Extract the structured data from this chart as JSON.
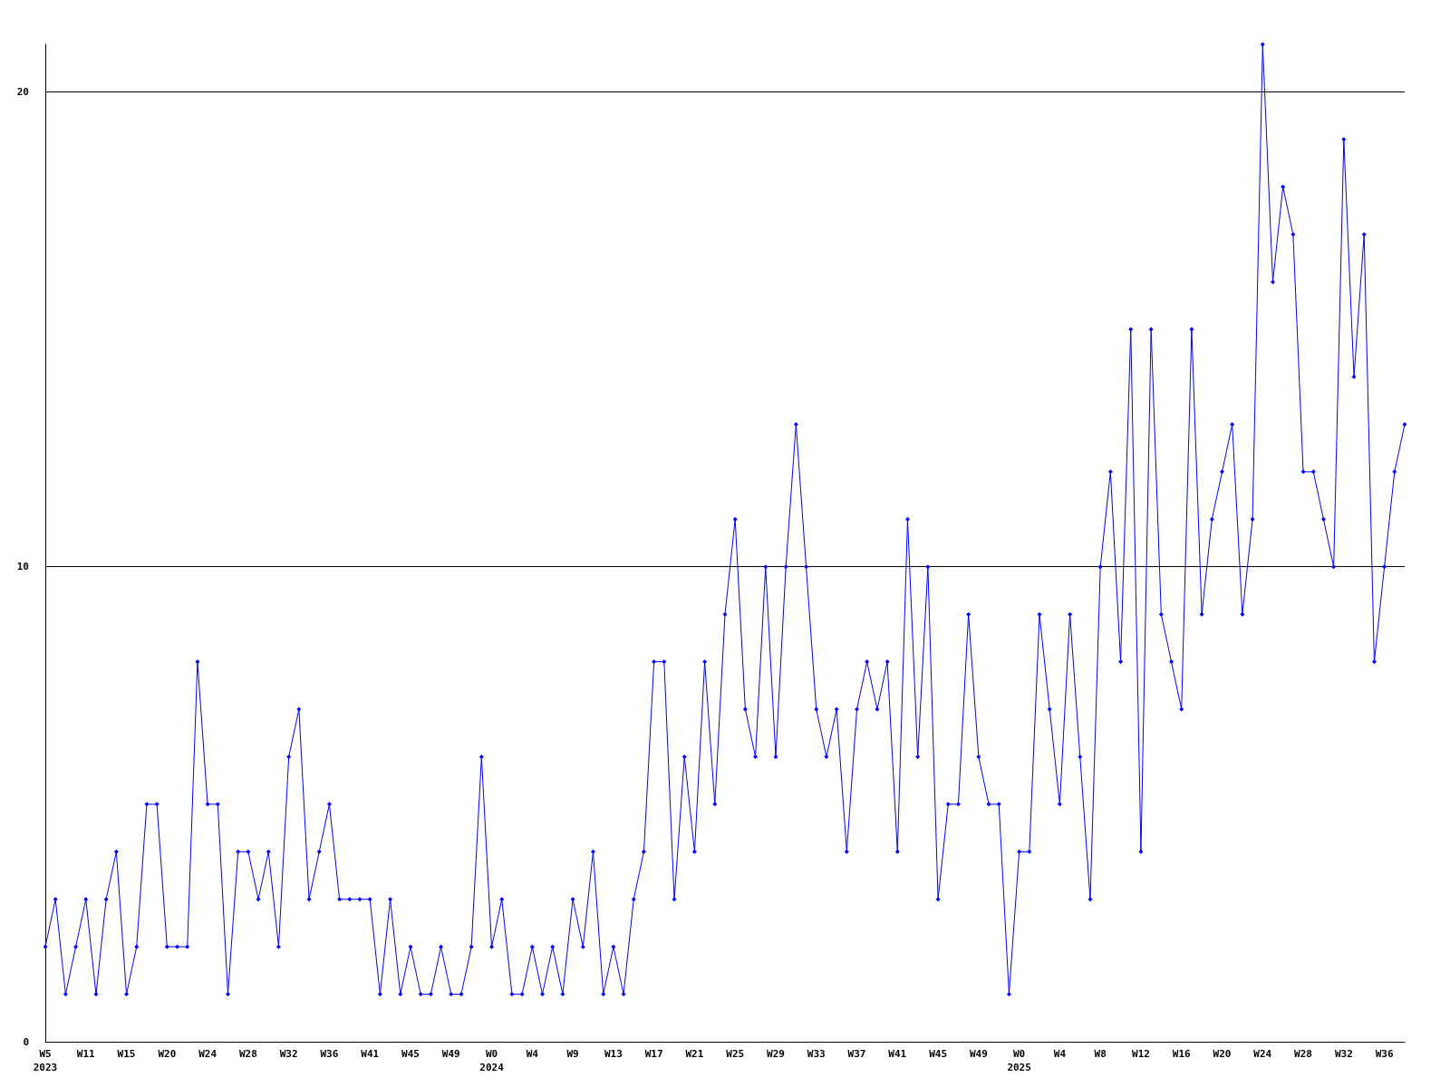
{
  "chart_data": {
    "type": "line",
    "categories": [
      "W5\n2023",
      null,
      null,
      null,
      "W11",
      null,
      null,
      null,
      "W15",
      null,
      null,
      null,
      "W20",
      null,
      null,
      null,
      "W24",
      null,
      null,
      null,
      "W28",
      null,
      null,
      null,
      "W32",
      null,
      null,
      null,
      "W36",
      null,
      null,
      null,
      "W41",
      null,
      null,
      null,
      "W45",
      null,
      null,
      null,
      "W49",
      null,
      null,
      null,
      "W0\n2024",
      null,
      null,
      null,
      "W4",
      null,
      null,
      null,
      "W9",
      null,
      null,
      null,
      "W13",
      null,
      null,
      null,
      "W17",
      null,
      null,
      null,
      "W21",
      null,
      null,
      null,
      "W25",
      null,
      null,
      null,
      "W29",
      null,
      null,
      null,
      "W33",
      null,
      null,
      null,
      "W37",
      null,
      null,
      null,
      "W41",
      null,
      null,
      null,
      "W45",
      null,
      null,
      null,
      "W49",
      null,
      null,
      null,
      "W0\n2025",
      null,
      null,
      null,
      "W4",
      null,
      null,
      null,
      "W8",
      null,
      null,
      null,
      "W12",
      null,
      null,
      null,
      "W16",
      null,
      null,
      null,
      "W20",
      null,
      null,
      null,
      "W24",
      null,
      null,
      null,
      "W28",
      null,
      null,
      null,
      "W32",
      null,
      null,
      null,
      "W36",
      null,
      null
    ],
    "series": [
      {
        "color": "#0000ff",
        "values": [
          2,
          3,
          1,
          2,
          3,
          1,
          3,
          4,
          1,
          2,
          5,
          5,
          2,
          2,
          2,
          8,
          5,
          5,
          1,
          4,
          4,
          3,
          4,
          2,
          6,
          7,
          3,
          4,
          5,
          3,
          3,
          3,
          3,
          1,
          3,
          1,
          2,
          1,
          1,
          2,
          1,
          1,
          2,
          6,
          2,
          3,
          1,
          1,
          2,
          1,
          2,
          1,
          3,
          2,
          4,
          1,
          2,
          1,
          3,
          4,
          8,
          8,
          3,
          6,
          4,
          8,
          5,
          9,
          11,
          7,
          6,
          10,
          6,
          10,
          13,
          10,
          7,
          6,
          7,
          4,
          7,
          8,
          7,
          8,
          4,
          11,
          6,
          10,
          3,
          5,
          5,
          9,
          6,
          5,
          5,
          1,
          4,
          4,
          9,
          7,
          5,
          9,
          6,
          3,
          10,
          12,
          8,
          15,
          4,
          15,
          9,
          8,
          7,
          15,
          9,
          11,
          12,
          13,
          9,
          11,
          21,
          16,
          18,
          17,
          12,
          12,
          11,
          10,
          19,
          14,
          17,
          8,
          10,
          12,
          13
        ]
      }
    ],
    "ylim": [
      0,
      21
    ],
    "yticks": [
      0,
      10,
      20
    ],
    "grid": "y",
    "marker": "diamond",
    "line_style": "solid"
  }
}
